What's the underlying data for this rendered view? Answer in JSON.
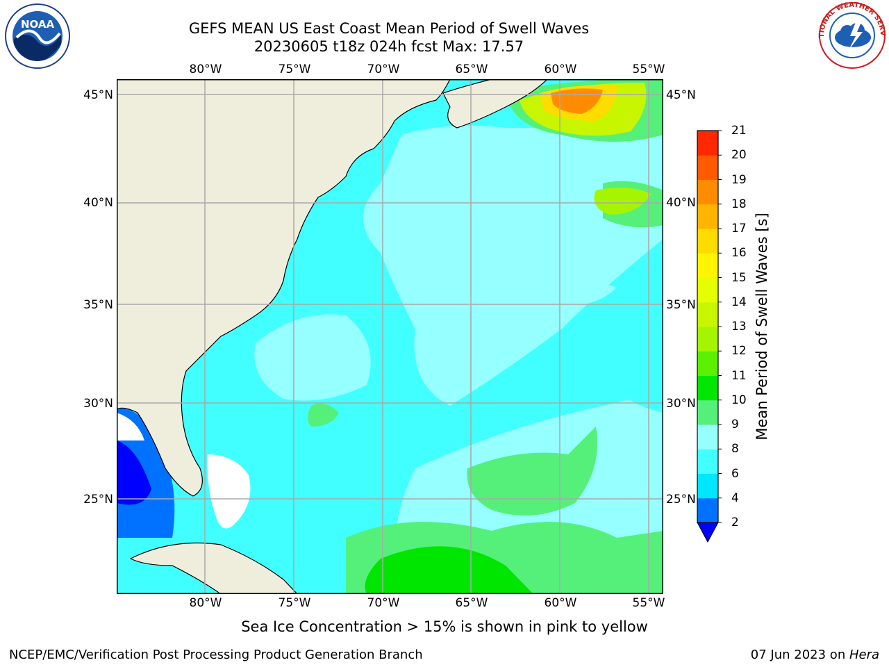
{
  "header": {
    "title_line1": "GEFS MEAN US East Coast Mean Period of Swell Waves",
    "title_line2": "20230605 t18z 024h fcst   Max: 17.57"
  },
  "logos": {
    "left": {
      "name": "NOAA",
      "text": "NOAA"
    },
    "right": {
      "name": "National Weather Service",
      "text": "NATIONAL WEATHER SERVICE"
    }
  },
  "map": {
    "lon_labels": [
      "80°W",
      "75°W",
      "70°W",
      "65°W",
      "60°W",
      "55°W"
    ],
    "lat_labels_left": [
      "45°N",
      "40°N",
      "35°N",
      "30°N",
      "25°N"
    ],
    "lat_labels_right": [
      "45°N",
      "40°N",
      "35°N",
      "30°N",
      "25°N"
    ],
    "land_color": "#efeedc",
    "grid_color": "#a9a9a9"
  },
  "colorbar": {
    "title": "Mean Period of Swell Waves [s]",
    "tick_labels": [
      "2",
      "4",
      "6",
      "8",
      "9",
      "10",
      "11",
      "12",
      "13",
      "14",
      "15",
      "16",
      "17",
      "18",
      "19",
      "20",
      "21"
    ],
    "colors": [
      "#0072ff",
      "#00e6ff",
      "#42ffff",
      "#96ffff",
      "#55f07a",
      "#00e600",
      "#5bf000",
      "#a6f500",
      "#c8f500",
      "#e6ff00",
      "#fff500",
      "#ffdc00",
      "#ffb400",
      "#ff8c00",
      "#ff5a00",
      "#ff2800"
    ],
    "under_color": "#0000ff"
  },
  "footer": {
    "note": "Sea Ice Concentration > 15% is shown in pink to yellow",
    "credit": "NCEP/EMC/Verification Post Processing Product Generation Branch",
    "date_prefix": "07 Jun 2023 on ",
    "date_machine": "Hera"
  }
}
